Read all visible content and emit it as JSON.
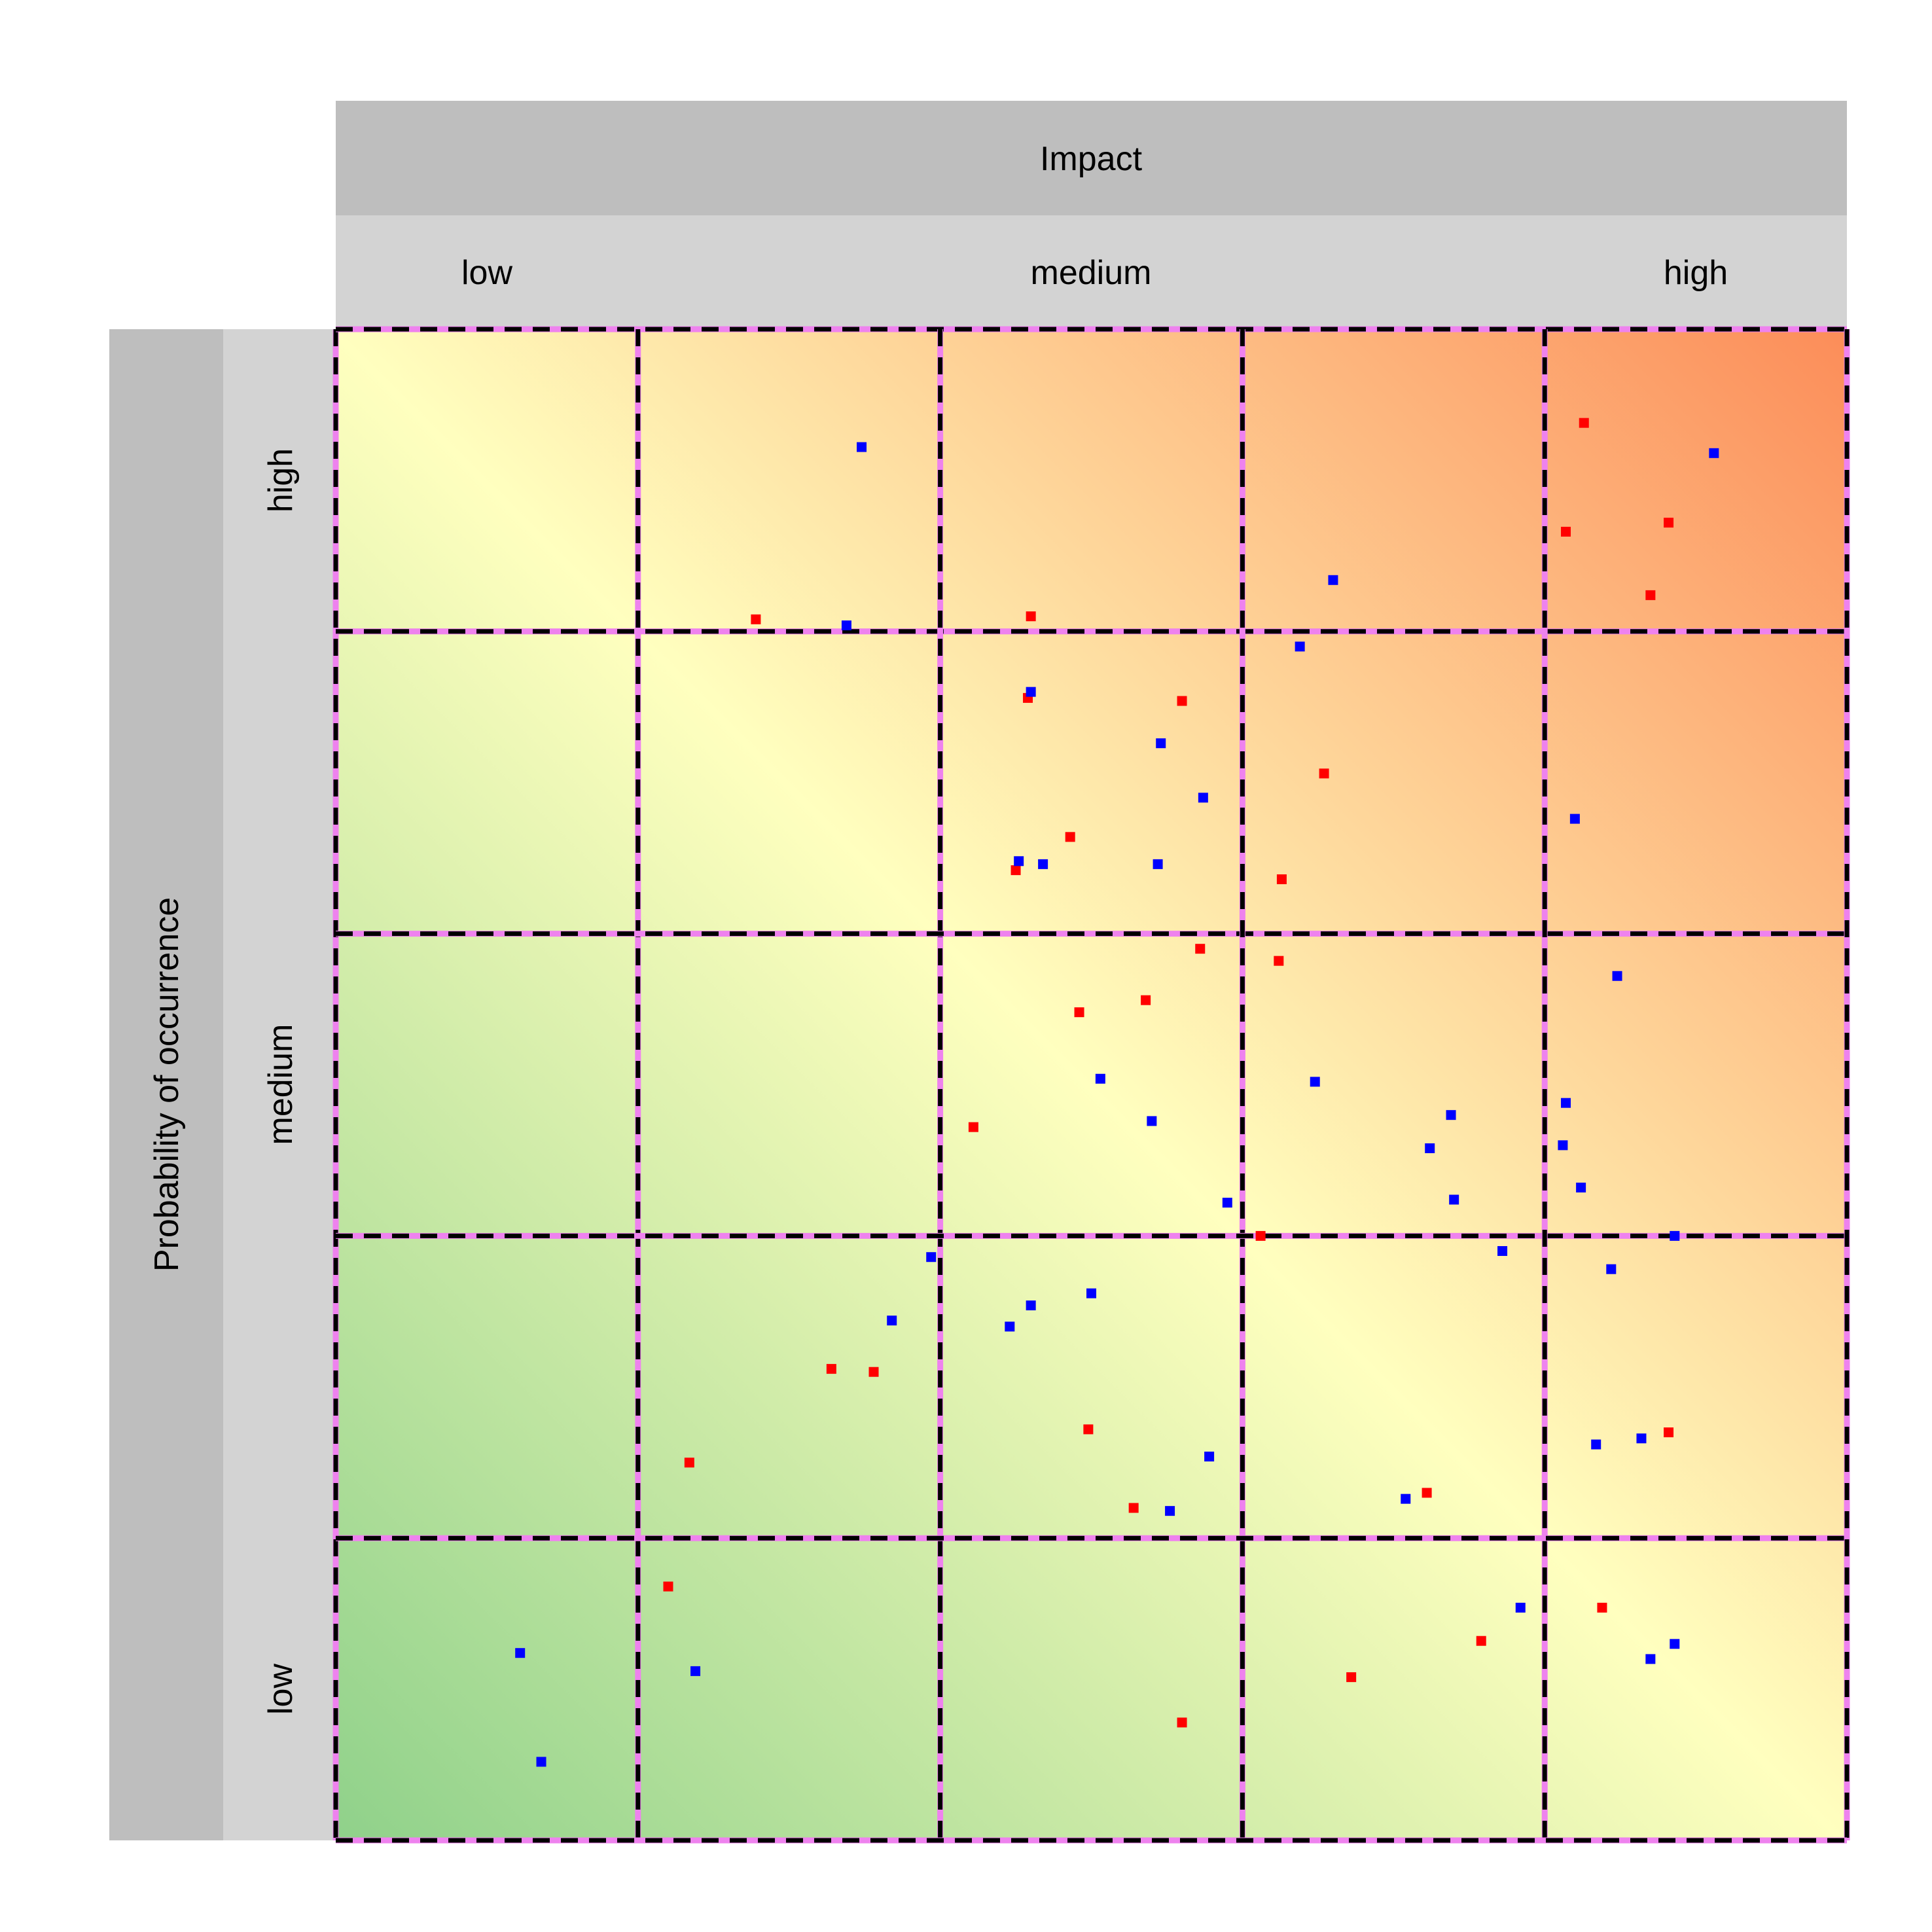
{
  "chart_data": {
    "type": "scatter",
    "x_header": "Impact",
    "y_header": "Probability of occurrence",
    "x_levels": [
      "low",
      "medium",
      "high"
    ],
    "y_levels": [
      "low",
      "medium",
      "high"
    ],
    "xlim": [
      0,
      5
    ],
    "ylim": [
      0,
      5
    ],
    "grid_cells": 5,
    "gradient_colors": {
      "low": "#8fd18a",
      "mid": "#ffffbf",
      "high": "#fc8d59"
    },
    "grid_color": "#000000",
    "grid_accent_color": "#ee82ee",
    "series": [
      {
        "color": "#ff0000",
        "points": [
          [
            1.39,
            4.04
          ],
          [
            2.3,
            4.05
          ],
          [
            4.13,
            4.69
          ],
          [
            4.07,
            4.33
          ],
          [
            4.41,
            4.36
          ],
          [
            4.35,
            4.12
          ],
          [
            2.29,
            3.78
          ],
          [
            2.8,
            3.77
          ],
          [
            2.43,
            3.32
          ],
          [
            2.25,
            3.21
          ],
          [
            3.27,
            3.53
          ],
          [
            3.13,
            3.18
          ],
          [
            2.86,
            2.95
          ],
          [
            2.46,
            2.74
          ],
          [
            2.68,
            2.78
          ],
          [
            2.11,
            2.36
          ],
          [
            3.12,
            2.91
          ],
          [
            3.06,
            2.0
          ],
          [
            1.64,
            1.56
          ],
          [
            1.78,
            1.55
          ],
          [
            1.17,
            1.25
          ],
          [
            2.49,
            1.36
          ],
          [
            2.64,
            1.1
          ],
          [
            3.61,
            1.15
          ],
          [
            4.41,
            1.35
          ],
          [
            1.1,
            0.84
          ],
          [
            2.8,
            0.39
          ],
          [
            3.36,
            0.54
          ],
          [
            3.79,
            0.66
          ],
          [
            4.19,
            0.77
          ]
        ]
      },
      {
        "color": "#0000ff",
        "points": [
          [
            1.74,
            4.61
          ],
          [
            1.69,
            4.02
          ],
          [
            3.3,
            4.17
          ],
          [
            4.56,
            4.59
          ],
          [
            3.19,
            3.95
          ],
          [
            2.3,
            3.8
          ],
          [
            2.73,
            3.63
          ],
          [
            2.87,
            3.45
          ],
          [
            2.26,
            3.24
          ],
          [
            2.34,
            3.23
          ],
          [
            2.72,
            3.23
          ],
          [
            4.1,
            3.38
          ],
          [
            4.24,
            2.86
          ],
          [
            2.53,
            2.52
          ],
          [
            2.7,
            2.38
          ],
          [
            2.95,
            2.11
          ],
          [
            3.24,
            2.51
          ],
          [
            3.69,
            2.4
          ],
          [
            3.62,
            2.29
          ],
          [
            3.7,
            2.12
          ],
          [
            4.07,
            2.44
          ],
          [
            4.06,
            2.3
          ],
          [
            4.12,
            2.16
          ],
          [
            1.97,
            1.93
          ],
          [
            1.84,
            1.72
          ],
          [
            2.23,
            1.7
          ],
          [
            2.3,
            1.77
          ],
          [
            2.5,
            1.81
          ],
          [
            3.86,
            1.95
          ],
          [
            4.22,
            1.89
          ],
          [
            4.43,
            2.0
          ],
          [
            2.89,
            1.27
          ],
          [
            2.76,
            1.09
          ],
          [
            3.54,
            1.13
          ],
          [
            4.17,
            1.31
          ],
          [
            4.32,
            1.33
          ],
          [
            0.61,
            0.62
          ],
          [
            0.68,
            0.26
          ],
          [
            1.19,
            0.56
          ],
          [
            3.92,
            0.77
          ],
          [
            4.35,
            0.6
          ],
          [
            4.43,
            0.65
          ]
        ]
      }
    ]
  }
}
